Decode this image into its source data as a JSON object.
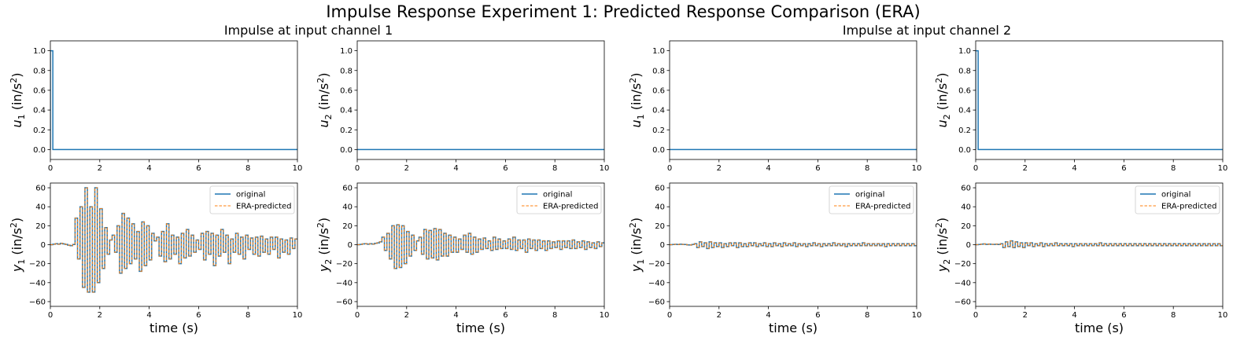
{
  "figure": {
    "title": "Impulse Response Experiment 1: Predicted Response Comparison (ERA)",
    "column_titles": [
      "Impulse at input channel 1",
      "Impulse at input channel 2"
    ]
  },
  "colors": {
    "original": "#1f77b4",
    "predicted": "#ff7f0e"
  },
  "chart_data": [
    {
      "type": "line",
      "row": 0,
      "col": 0,
      "ylabel_base": "u",
      "ylabel_sub": "1",
      "ylabel_unit_pre": " (in/s",
      "ylabel_unit_sup": "2",
      "ylabel_unit_post": ")",
      "xlabel": "",
      "xlim": [
        0,
        10
      ],
      "ylim": [
        -0.1,
        1.1
      ],
      "xticks": [
        0,
        2,
        4,
        6,
        8,
        10
      ],
      "yticks": [
        0.0,
        0.2,
        0.4,
        0.6,
        0.8,
        1.0
      ],
      "ytick_labels": [
        "0.0",
        "0.2",
        "0.4",
        "0.6",
        "0.8",
        "1.0"
      ],
      "series": [
        {
          "style": "original",
          "x": [
            0,
            0,
            0.1,
            0.1,
            10
          ],
          "y": [
            0,
            1,
            1,
            0,
            0
          ]
        }
      ]
    },
    {
      "type": "line",
      "row": 0,
      "col": 1,
      "ylabel_base": "u",
      "ylabel_sub": "2",
      "ylabel_unit_pre": " (in/s",
      "ylabel_unit_sup": "2",
      "ylabel_unit_post": ")",
      "xlabel": "",
      "xlim": [
        0,
        10
      ],
      "ylim": [
        -0.1,
        1.1
      ],
      "xticks": [
        0,
        2,
        4,
        6,
        8,
        10
      ],
      "yticks": [
        0.0,
        0.2,
        0.4,
        0.6,
        0.8,
        1.0
      ],
      "ytick_labels": [
        "0.0",
        "0.2",
        "0.4",
        "0.6",
        "0.8",
        "1.0"
      ],
      "series": [
        {
          "style": "original",
          "x": [
            0,
            10
          ],
          "y": [
            0,
            0
          ]
        }
      ]
    },
    {
      "type": "line",
      "row": 0,
      "col": 2,
      "ylabel_base": "u",
      "ylabel_sub": "1",
      "ylabel_unit_pre": " (in/s",
      "ylabel_unit_sup": "2",
      "ylabel_unit_post": ")",
      "xlabel": "",
      "xlim": [
        0,
        10
      ],
      "ylim": [
        -0.1,
        1.1
      ],
      "xticks": [
        0,
        2,
        4,
        6,
        8,
        10
      ],
      "yticks": [
        0.0,
        0.2,
        0.4,
        0.6,
        0.8,
        1.0
      ],
      "ytick_labels": [
        "0.0",
        "0.2",
        "0.4",
        "0.6",
        "0.8",
        "1.0"
      ],
      "series": [
        {
          "style": "original",
          "x": [
            0,
            10
          ],
          "y": [
            0,
            0
          ]
        }
      ]
    },
    {
      "type": "line",
      "row": 0,
      "col": 3,
      "ylabel_base": "u",
      "ylabel_sub": "2",
      "ylabel_unit_pre": " (in/s",
      "ylabel_unit_sup": "2",
      "ylabel_unit_post": ")",
      "xlabel": "",
      "xlim": [
        0,
        10
      ],
      "ylim": [
        -0.1,
        1.1
      ],
      "xticks": [
        0,
        2,
        4,
        6,
        8,
        10
      ],
      "yticks": [
        0.0,
        0.2,
        0.4,
        0.6,
        0.8,
        1.0
      ],
      "ytick_labels": [
        "0.0",
        "0.2",
        "0.4",
        "0.6",
        "0.8",
        "1.0"
      ],
      "series": [
        {
          "style": "original",
          "x": [
            0,
            0,
            0.1,
            0.1,
            10
          ],
          "y": [
            0,
            1,
            1,
            0,
            0
          ]
        }
      ]
    },
    {
      "type": "line",
      "row": 1,
      "col": 0,
      "ylabel_base": "y",
      "ylabel_sub": "1",
      "ylabel_unit_pre": " (in/s",
      "ylabel_unit_sup": "2",
      "ylabel_unit_post": ")",
      "xlabel": "time (s)",
      "xlim": [
        0,
        10
      ],
      "ylim": [
        -65,
        65
      ],
      "xticks": [
        0,
        2,
        4,
        6,
        8,
        10
      ],
      "yticks": [
        -60,
        -40,
        -20,
        0,
        20,
        40,
        60
      ],
      "ytick_labels": [
        "−60",
        "−40",
        "−20",
        "0",
        "20",
        "40",
        "60"
      ],
      "legend": {
        "loc": "top-right",
        "labels": [
          "original",
          "ERA-predicted"
        ]
      },
      "step_dt": 0.1,
      "y_steps": [
        0,
        0.5,
        1,
        0.5,
        1.5,
        0.8,
        0.3,
        -0.5,
        -1,
        0.2,
        28,
        -15,
        40,
        -45,
        60,
        -50,
        40,
        -50,
        60,
        -40,
        38,
        -25,
        18,
        -10,
        5,
        10,
        -8,
        20,
        -30,
        33,
        -25,
        28,
        -20,
        22,
        -15,
        14,
        -28,
        24,
        -22,
        20,
        -16,
        12,
        4,
        8,
        -12,
        14,
        -18,
        22,
        -15,
        10,
        -10,
        8,
        -20,
        12,
        -14,
        16,
        -12,
        10,
        -8,
        5,
        -5,
        12,
        -16,
        14,
        -10,
        12,
        -22,
        10,
        -12,
        16,
        -8,
        10,
        -20,
        6,
        -8,
        12,
        -10,
        8,
        -15,
        10,
        -5,
        7,
        -10,
        8,
        -12,
        9,
        -8,
        6,
        -10,
        8,
        -5,
        8,
        -14,
        6,
        -8,
        5,
        -10,
        7,
        -4,
        6
      ]
    },
    {
      "type": "line",
      "row": 1,
      "col": 1,
      "ylabel_base": "y",
      "ylabel_sub": "2",
      "ylabel_unit_pre": " (in/s",
      "ylabel_unit_sup": "2",
      "ylabel_unit_post": ")",
      "xlabel": "time (s)",
      "xlim": [
        0,
        10
      ],
      "ylim": [
        -65,
        65
      ],
      "xticks": [
        0,
        2,
        4,
        6,
        8,
        10
      ],
      "yticks": [
        -60,
        -40,
        -20,
        0,
        20,
        40,
        60
      ],
      "ytick_labels": [
        "−60",
        "−40",
        "−20",
        "0",
        "20",
        "40",
        "60"
      ],
      "legend": {
        "loc": "top-right",
        "labels": [
          "original",
          "ERA-predicted"
        ]
      },
      "step_dt": 0.1,
      "y_steps": [
        0,
        0.3,
        0.8,
        1,
        0.5,
        1,
        0.6,
        1.5,
        2,
        3,
        8,
        -6,
        12,
        -15,
        20,
        -25,
        21,
        -24,
        20,
        -20,
        14,
        -12,
        10,
        -6,
        4,
        8,
        -10,
        16,
        -15,
        15,
        -14,
        17,
        -16,
        16,
        -12,
        12,
        -12,
        10,
        -8,
        8,
        -8,
        6,
        -5,
        10,
        -8,
        12,
        -10,
        8,
        -8,
        6,
        -5,
        7,
        -4,
        4,
        -6,
        8,
        -5,
        6,
        -4,
        4,
        -4,
        6,
        -5,
        8,
        -6,
        5,
        -4,
        5,
        -8,
        6,
        -4,
        5,
        -6,
        5,
        -4,
        4,
        -6,
        4,
        -4,
        3,
        -3,
        4,
        -5,
        4,
        -3,
        4,
        -4,
        5,
        -4,
        3,
        -3,
        4,
        -5,
        3,
        -3,
        2,
        -4,
        3,
        -2,
        2
      ]
    },
    {
      "type": "line",
      "row": 1,
      "col": 2,
      "ylabel_base": "y",
      "ylabel_sub": "1",
      "ylabel_unit_pre": " (in/s",
      "ylabel_unit_sup": "2",
      "ylabel_unit_post": ")",
      "xlabel": "time (s)",
      "xlim": [
        0,
        10
      ],
      "ylim": [
        -65,
        65
      ],
      "xticks": [
        0,
        2,
        4,
        6,
        8,
        10
      ],
      "yticks": [
        -60,
        -40,
        -20,
        0,
        20,
        40,
        60
      ],
      "ytick_labels": [
        "−60",
        "−40",
        "−20",
        "0",
        "20",
        "40",
        "60"
      ],
      "legend": {
        "loc": "top-right",
        "labels": [
          "original",
          "ERA-predicted"
        ]
      },
      "step_dt": 0.1,
      "y_steps": [
        0,
        0.2,
        0.4,
        0.2,
        0.5,
        0.3,
        0.2,
        -0.2,
        -0.3,
        0.2,
        1,
        -3,
        3,
        -2,
        2,
        -4,
        3,
        -3,
        2,
        -2,
        2,
        -3,
        1,
        -2,
        2,
        -1,
        2,
        -3,
        2,
        -2,
        1,
        -2,
        2,
        -1,
        2,
        -2,
        1,
        -1,
        2,
        -2,
        1,
        -2,
        2,
        -1,
        1,
        -2,
        2,
        -1,
        1,
        -1,
        2,
        -2,
        1,
        -1,
        1,
        -2,
        1,
        -1,
        2,
        -1,
        1,
        -2,
        1,
        -1,
        1,
        -1,
        2,
        -1,
        1,
        -1,
        1,
        -2,
        1,
        -1,
        1,
        -1,
        1,
        -1,
        2,
        -1,
        1,
        -1,
        1,
        -1,
        1,
        -1,
        1,
        -2,
        1,
        -1,
        1,
        -1,
        1,
        -1,
        1,
        -1,
        1,
        -1,
        1,
        -1
      ]
    },
    {
      "type": "line",
      "row": 1,
      "col": 3,
      "ylabel_base": "y",
      "ylabel_sub": "2",
      "ylabel_unit_pre": " (in/s",
      "ylabel_unit_sup": "2",
      "ylabel_unit_post": ")",
      "xlabel": "time (s)",
      "xlim": [
        0,
        10
      ],
      "ylim": [
        -65,
        65
      ],
      "xticks": [
        0,
        2,
        4,
        6,
        8,
        10
      ],
      "yticks": [
        -60,
        -40,
        -20,
        0,
        20,
        40,
        60
      ],
      "ytick_labels": [
        "−60",
        "−40",
        "−20",
        "0",
        "20",
        "40",
        "60"
      ],
      "legend": {
        "loc": "top-right",
        "labels": [
          "original",
          "ERA-predicted"
        ]
      },
      "step_dt": 0.1,
      "y_steps": [
        0,
        0.2,
        0.5,
        0.8,
        0.3,
        0.6,
        0.4,
        0.3,
        0.5,
        0.2,
        1,
        -3,
        3,
        -2,
        4,
        -3,
        3,
        -2,
        2,
        -3,
        2,
        -1,
        2,
        -2,
        1,
        -1,
        2,
        -2,
        1,
        -1,
        1,
        -1,
        2,
        -1,
        1,
        -1,
        1,
        -1,
        1,
        -2,
        1,
        -1,
        1,
        -1,
        1,
        -1,
        1,
        -1,
        1,
        -1,
        2,
        -1,
        1,
        -1,
        1,
        -1,
        1,
        -1,
        1,
        -1,
        1,
        -1,
        1,
        -1,
        1,
        -1,
        1,
        -1,
        1,
        -1,
        1,
        -1,
        1,
        -1,
        1,
        -1,
        1,
        -1,
        1,
        -1,
        1,
        -1,
        1,
        -1,
        1,
        -1,
        1,
        -1,
        1,
        -1,
        1,
        -1,
        1,
        -1,
        1,
        -1,
        1,
        -1,
        1,
        -1
      ]
    }
  ]
}
